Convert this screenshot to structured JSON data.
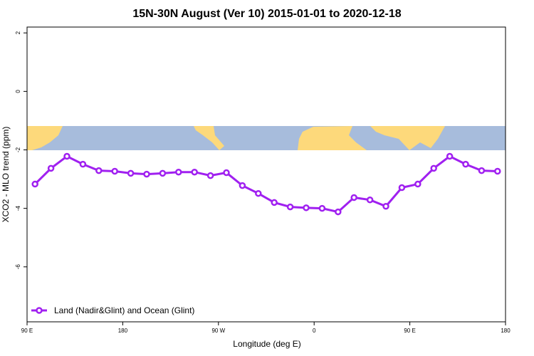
{
  "chart_data": {
    "type": "line",
    "title": "15N-30N August (Ver 10)   2015-01-01 to 2020-12-18",
    "xlabel": "Longitude (deg E)",
    "ylabel": "XCO2 - MLO trend (ppm)",
    "x": [
      97.5,
      112.5,
      127.5,
      142.5,
      157.5,
      172.5,
      187.5,
      202.5,
      217.5,
      232.5,
      247.5,
      262.5,
      277.5,
      292.5,
      307.5,
      322.5,
      337.5,
      352.5,
      367.5,
      382.5,
      397.5,
      412.5,
      427.5,
      442.5,
      457.5,
      472.5,
      487.5,
      502.5,
      517.5,
      532.5
    ],
    "series": [
      {
        "name": "Land (Nadir&Glint) and Ocean (Glint)",
        "color": "#a020f0",
        "values": [
          -3.17,
          -2.63,
          -2.22,
          -2.49,
          -2.71,
          -2.73,
          -2.8,
          -2.83,
          -2.8,
          -2.76,
          -2.76,
          -2.88,
          -2.78,
          -3.22,
          -3.49,
          -3.8,
          -3.95,
          -3.98,
          -4.0,
          -4.12,
          -3.63,
          -3.71,
          -3.93,
          -3.29,
          -3.17,
          -2.63,
          -2.22,
          -2.49,
          -2.71,
          -2.73
        ]
      }
    ],
    "xlim": [
      90,
      540
    ],
    "xticks": [
      {
        "value": 90,
        "label": "90 E"
      },
      {
        "value": 180,
        "label": "180"
      },
      {
        "value": 270,
        "label": "90 W"
      },
      {
        "value": 360,
        "label": "0"
      },
      {
        "value": 450,
        "label": "90 E"
      },
      {
        "value": 540,
        "label": "180"
      }
    ],
    "ylim": [
      -7.88,
      2.2
    ],
    "yticks": [
      2,
      0,
      -2,
      -4,
      -6
    ],
    "legend": "bottom-left"
  }
}
